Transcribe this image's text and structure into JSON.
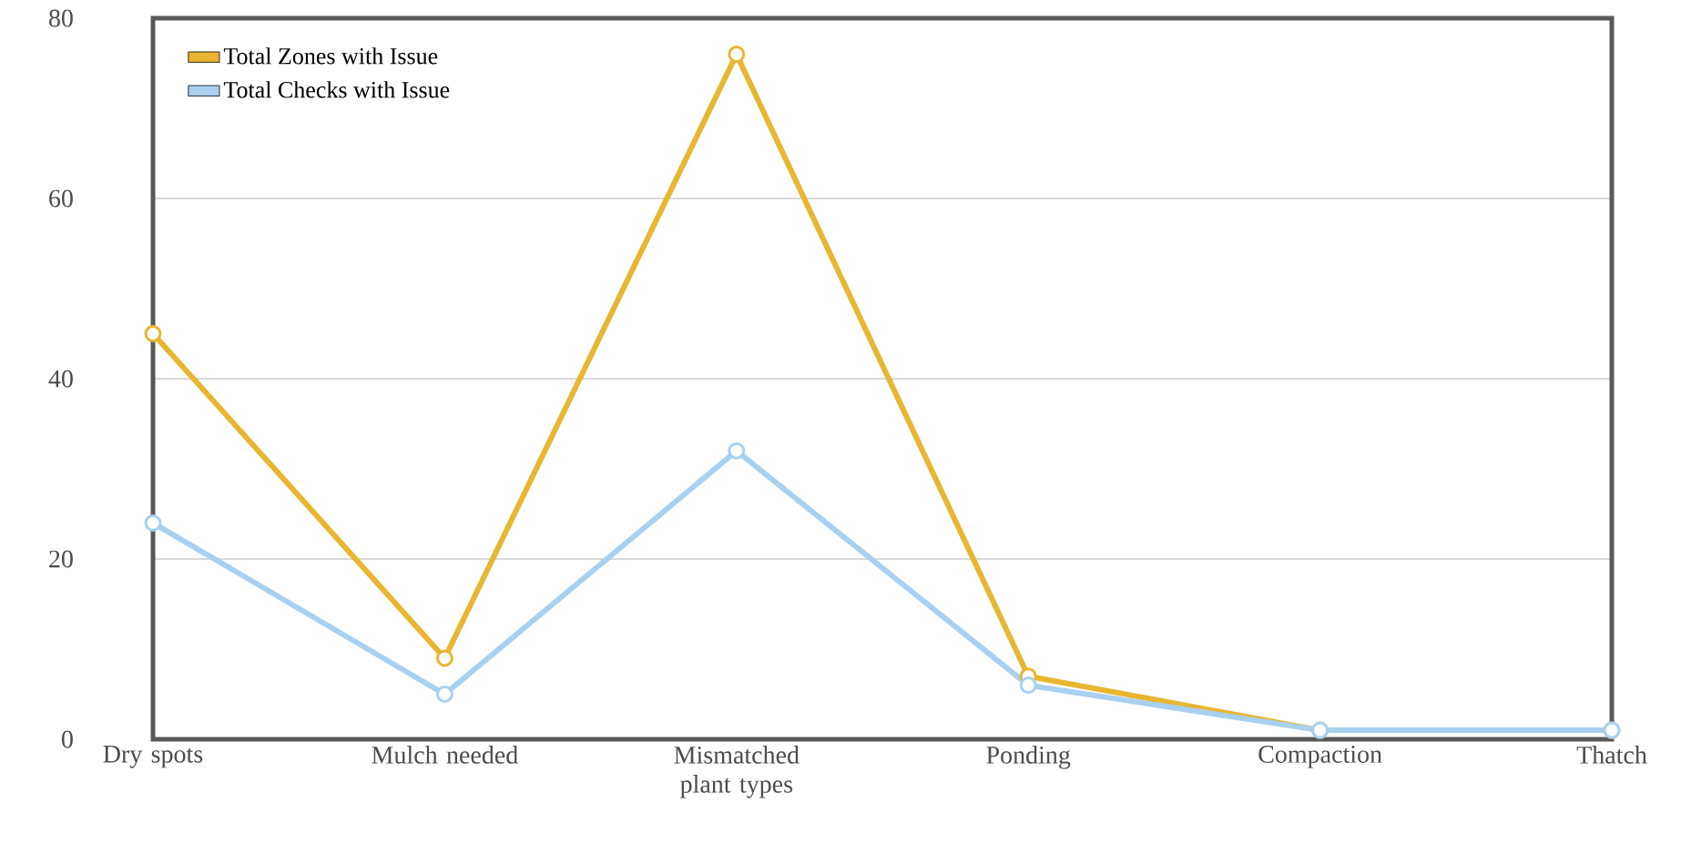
{
  "chart_data": {
    "type": "line",
    "categories": [
      "Dry spots",
      "Mulch needed",
      "Mismatched plant types",
      "Ponding",
      "Compaction",
      "Thatch"
    ],
    "series": [
      {
        "name": "Total Zones with Issue",
        "color": "#e8b630",
        "values": [
          45,
          9,
          76,
          7,
          1,
          1
        ]
      },
      {
        "name": "Total Checks with Issue",
        "color": "#a9d0f0",
        "values": [
          24,
          5,
          32,
          6,
          1,
          1
        ]
      }
    ],
    "ylim": [
      0,
      80
    ],
    "yticks": [
      0,
      20,
      40,
      60,
      80
    ],
    "grid": "y",
    "legend": "top left",
    "marker": "circle",
    "line_style": "solid"
  }
}
